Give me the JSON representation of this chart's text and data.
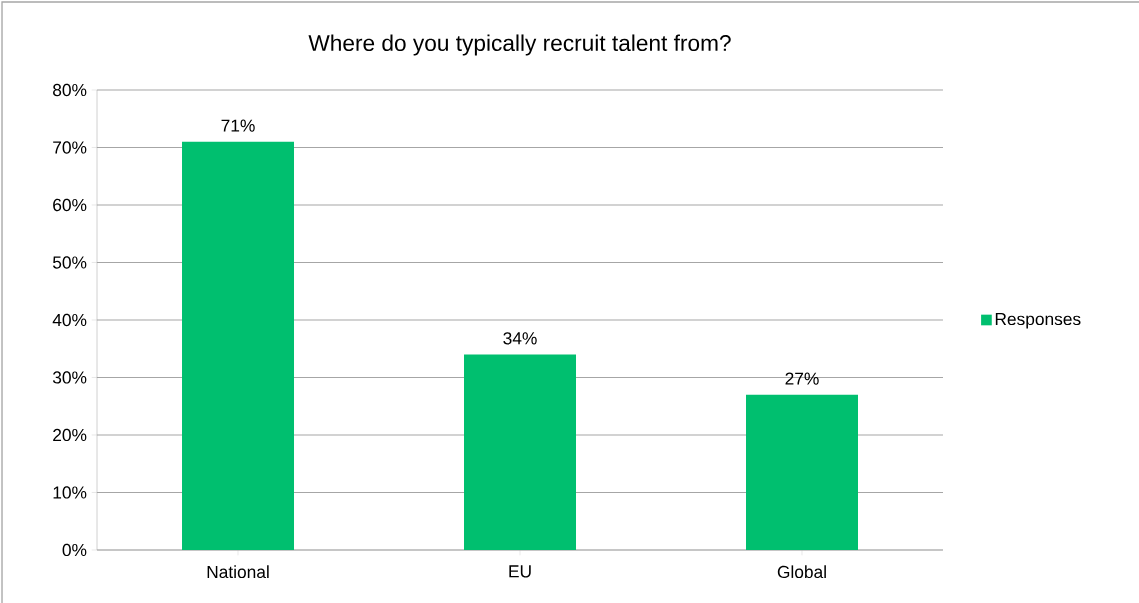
{
  "chart_data": {
    "type": "bar",
    "title": "Where do you typically recruit talent from?",
    "categories": [
      "National",
      "EU",
      "Global"
    ],
    "series": [
      {
        "name": "Responses",
        "color": "#00bf6f",
        "values": [
          71,
          34,
          27
        ],
        "value_labels": [
          "71%",
          "34%",
          "27%"
        ]
      }
    ],
    "ylim": [
      0,
      80
    ],
    "yticks": [
      {
        "value": 0,
        "label": "0%"
      },
      {
        "value": 10,
        "label": "10%"
      },
      {
        "value": 20,
        "label": "20%"
      },
      {
        "value": 30,
        "label": "30%"
      },
      {
        "value": 40,
        "label": "40%"
      },
      {
        "value": 50,
        "label": "50%"
      },
      {
        "value": 60,
        "label": "60%"
      },
      {
        "value": 70,
        "label": "70%"
      },
      {
        "value": 80,
        "label": "80%"
      }
    ],
    "grid": "y",
    "legend": "right"
  }
}
